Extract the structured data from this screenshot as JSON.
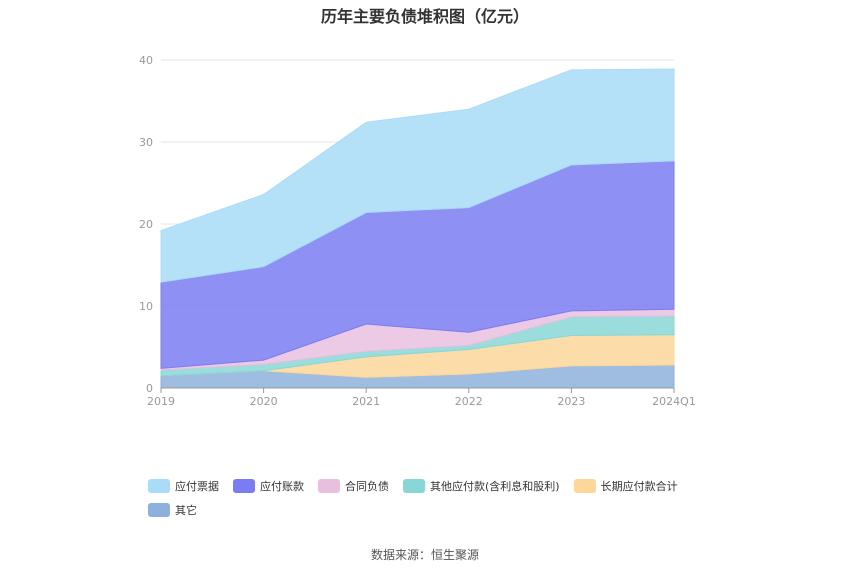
{
  "title": "历年主要负债堆积图（亿元）",
  "source": "数据来源：恒生聚源",
  "chart_data": {
    "type": "area",
    "stacked": true,
    "categories": [
      "2019",
      "2020",
      "2021",
      "2022",
      "2023",
      "2024Q1"
    ],
    "ylim": [
      0,
      40
    ],
    "yticks": [
      0,
      10,
      20,
      30,
      40
    ],
    "grid": true,
    "legend_position": "bottom",
    "series": [
      {
        "name": "其它",
        "color": "#8eb0dc",
        "values": [
          1.5,
          2.1,
          1.3,
          1.7,
          2.7,
          2.8
        ]
      },
      {
        "name": "长期应付款合计",
        "color": "#fcd79a",
        "values": [
          0.0,
          0.0,
          2.5,
          3.0,
          3.7,
          3.7
        ]
      },
      {
        "name": "其他应付款(含利息和股利)",
        "color": "#88d7d6",
        "values": [
          0.7,
          0.8,
          0.7,
          0.5,
          2.3,
          2.3
        ]
      },
      {
        "name": "合同负债",
        "color": "#e9bfdf",
        "values": [
          0.2,
          0.5,
          3.3,
          1.6,
          0.7,
          0.8
        ]
      },
      {
        "name": "应付账款",
        "color": "#7b7cf2",
        "values": [
          10.5,
          11.4,
          13.6,
          15.2,
          17.8,
          18.1
        ]
      },
      {
        "name": "应付票据",
        "color": "#a8dcf7",
        "values": [
          6.3,
          8.8,
          11.0,
          12.0,
          11.6,
          11.2
        ]
      }
    ]
  }
}
